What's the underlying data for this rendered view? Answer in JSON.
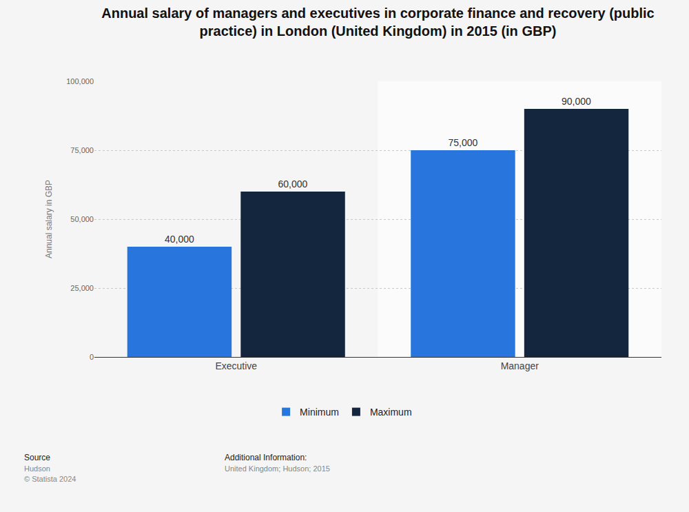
{
  "chart_data": {
    "type": "bar",
    "title": "Annual salary of managers and executives in corporate finance and recovery (public practice) in London (United Kingdom) in 2015 (in GBP)",
    "y_label": "Annual salary in GBP",
    "categories": [
      "Executive",
      "Manager"
    ],
    "series": [
      {
        "name": "Minimum",
        "color": "#2876dd",
        "values": [
          40000,
          75000
        ],
        "value_labels": [
          "40,000",
          "75,000"
        ]
      },
      {
        "name": "Maximum",
        "color": "#13263d",
        "values": [
          60000,
          90000
        ],
        "value_labels": [
          "60,000",
          "90,000"
        ]
      }
    ],
    "ylim": [
      0,
      100000
    ],
    "yticks": [
      0,
      {
        "value": 25000,
        "label": "25,000"
      },
      {
        "value": 50000,
        "label": "50,000"
      },
      {
        "value": 75000,
        "label": "75,000"
      },
      {
        "value": 100000,
        "label": "100,000"
      }
    ],
    "grid": true,
    "legend": "bottom",
    "data_labels": true,
    "source_label": "Source",
    "source": "Hudson",
    "copyright": "© Statista 2024",
    "additional_info_label": "Additional Information:",
    "additional_info": "United Kingdom; Hudson; 2015"
  }
}
